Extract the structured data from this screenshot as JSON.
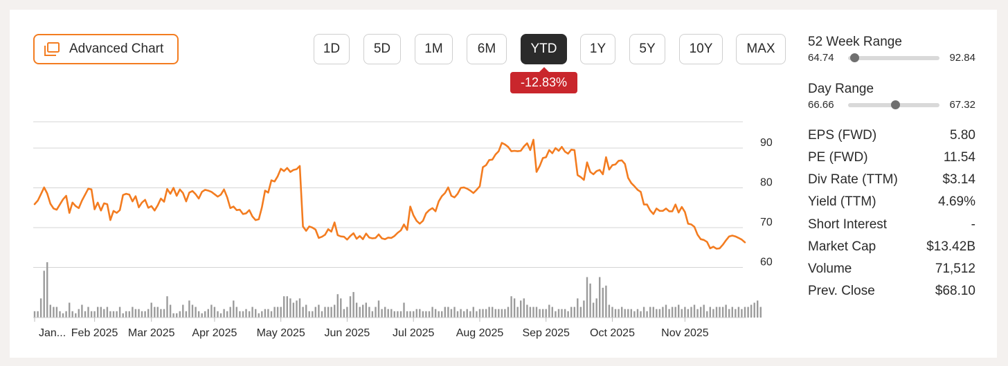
{
  "advanced_chart_label": "Advanced Chart",
  "ranges": [
    "1D",
    "5D",
    "1M",
    "6M",
    "YTD",
    "1Y",
    "5Y",
    "10Y",
    "MAX"
  ],
  "active_range": "YTD",
  "change_pct": "-12.83%",
  "colors": {
    "accent": "#f37c20",
    "negative": "#c9262c",
    "volume": "#9b9b9b",
    "grid": "#d4d4d4"
  },
  "week52": {
    "title": "52 Week Range",
    "low": "64.74",
    "high": "92.84",
    "current": 66.66
  },
  "day": {
    "title": "Day Range",
    "low": "66.66",
    "high": "67.32",
    "current": 67.0
  },
  "stats": [
    {
      "label": "EPS (FWD)",
      "value": "5.80"
    },
    {
      "label": "PE (FWD)",
      "value": "11.54"
    },
    {
      "label": "Div Rate (TTM)",
      "value": "$3.14"
    },
    {
      "label": "Yield (TTM)",
      "value": "4.69%"
    },
    {
      "label": "Short Interest",
      "value": "-"
    },
    {
      "label": "Market Cap",
      "value": "$13.42B"
    },
    {
      "label": "Volume",
      "value": "71,512"
    },
    {
      "label": "Prev. Close",
      "value": "$68.10"
    }
  ],
  "chart_data": {
    "type": "line",
    "title": "",
    "xlabel": "",
    "ylabel": "",
    "ylim": [
      58,
      98
    ],
    "yticks": [
      60,
      70,
      80,
      90
    ],
    "grid": true,
    "month_labels": [
      "Jan...",
      "Feb 2025",
      "Mar 2025",
      "Apr 2025",
      "May 2025",
      "Jun 2025",
      "Jul 2025",
      "Aug 2025",
      "Sep 2025",
      "Oct 2025",
      "Nov 2025"
    ],
    "month_start_index": [
      0,
      19,
      37,
      57,
      78,
      99,
      120,
      141,
      162,
      183,
      206
    ],
    "series": [
      {
        "name": "Price",
        "values": [
          75.9,
          76.8,
          78.4,
          80.1,
          78.6,
          76.0,
          74.8,
          74.5,
          75.8,
          77.1,
          78.0,
          73.7,
          76.3,
          75.4,
          74.9,
          76.8,
          78.3,
          79.8,
          79.6,
          74.6,
          76.3,
          74.3,
          76.1,
          75.9,
          71.9,
          74.2,
          73.7,
          74.4,
          78.2,
          78.5,
          78.3,
          76.6,
          77.9,
          75.1,
          76.3,
          77.0,
          75.0,
          75.4,
          74.3,
          75.6,
          77.3,
          76.5,
          79.7,
          78.5,
          80.0,
          78.0,
          79.6,
          78.7,
          76.6,
          78.8,
          79.2,
          78.4,
          77.3,
          79.0,
          79.5,
          79.3,
          79.0,
          78.4,
          77.8,
          78.3,
          79.6,
          77.6,
          74.9,
          75.3,
          74.4,
          74.5,
          73.4,
          73.6,
          74.4,
          72.8,
          71.9,
          72.1,
          75.1,
          79.3,
          78.8,
          81.9,
          81.6,
          82.9,
          84.8,
          84.2,
          85.0,
          84.0,
          84.5,
          84.7,
          85.5,
          70.3,
          69.2,
          70.3,
          70.0,
          69.5,
          67.4,
          67.7,
          68.2,
          69.6,
          69.0,
          71.3,
          68.1,
          67.8,
          67.7,
          67.0,
          67.9,
          68.6,
          67.2,
          67.9,
          67.1,
          68.5,
          67.5,
          67.3,
          67.4,
          68.3,
          67.3,
          67.1,
          67.5,
          67.4,
          67.9,
          68.7,
          69.3,
          70.8,
          69.4,
          75.3,
          73.1,
          71.7,
          71.0,
          71.7,
          73.6,
          74.4,
          74.9,
          74.1,
          76.6,
          77.9,
          78.7,
          80.1,
          78.0,
          77.6,
          78.5,
          80.0,
          80.1,
          79.8,
          79.3,
          78.7,
          79.5,
          80.4,
          85.2,
          85.7,
          87.0,
          87.1,
          88.4,
          89.2,
          91.3,
          90.9,
          90.3,
          89.2,
          89.3,
          89.2,
          89.3,
          90.4,
          91.2,
          89.5,
          92.1,
          84.0,
          85.5,
          87.5,
          87.7,
          89.5,
          88.7,
          90.0,
          89.3,
          90.3,
          89.1,
          88.6,
          89.6,
          89.5,
          83.2,
          82.7,
          82.0,
          86.4,
          84.0,
          83.4,
          84.2,
          84.5,
          83.4,
          87.7,
          84.6,
          85.7,
          85.9,
          86.8,
          86.9,
          86.0,
          82.5,
          81.2,
          80.4,
          79.5,
          79.0,
          75.8,
          75.8,
          74.3,
          73.4,
          74.8,
          74.2,
          74.2,
          74.8,
          74.1,
          74.1,
          75.8,
          73.8,
          75.2,
          73.9,
          71.0,
          70.8,
          70.2,
          68.2,
          67.1,
          66.9,
          66.4,
          64.8,
          65.2,
          64.7,
          64.8,
          65.7,
          66.8,
          67.8,
          68.0,
          67.8,
          67.4,
          67.0,
          66.3
        ]
      },
      {
        "name": "Volume",
        "values": [
          3,
          3,
          9,
          22,
          26,
          6,
          5,
          5,
          3,
          2,
          3,
          7,
          3,
          2,
          4,
          6,
          3,
          5,
          3,
          3,
          5,
          5,
          4,
          5,
          3,
          3,
          3,
          5,
          2,
          3,
          3,
          5,
          4,
          4,
          3,
          3,
          4,
          7,
          5,
          5,
          4,
          4,
          10,
          6,
          2,
          2,
          3,
          6,
          3,
          8,
          6,
          5,
          3,
          2,
          3,
          4,
          6,
          5,
          3,
          2,
          4,
          3,
          5,
          8,
          5,
          3,
          3,
          4,
          3,
          5,
          4,
          2,
          3,
          4,
          4,
          3,
          5,
          5,
          5,
          10,
          10,
          9,
          7,
          8,
          9,
          5,
          6,
          3,
          3,
          5,
          6,
          3,
          5,
          5,
          5,
          6,
          11,
          9,
          4,
          5,
          10,
          12,
          7,
          5,
          6,
          7,
          5,
          3,
          5,
          8,
          4,
          5,
          4,
          4,
          3,
          3,
          3,
          7,
          3,
          3,
          3,
          4,
          4,
          3,
          3,
          3,
          5,
          4,
          3,
          3,
          5,
          5,
          4,
          5,
          3,
          4,
          3,
          4,
          3,
          5,
          3,
          4,
          4,
          4,
          5,
          5,
          4,
          4,
          4,
          4,
          5,
          10,
          9,
          5,
          8,
          9,
          6,
          5,
          5,
          5,
          4,
          4,
          4,
          6,
          5,
          3,
          4,
          4,
          4,
          3,
          5,
          5,
          9,
          5,
          8,
          19,
          16,
          7,
          9,
          19,
          14,
          15,
          6,
          5,
          4,
          4,
          5,
          4,
          4,
          4,
          3,
          4,
          3,
          5,
          3,
          5,
          5,
          4,
          4,
          5,
          6,
          4,
          5,
          5,
          6,
          4,
          5,
          4,
          5,
          6,
          4,
          5,
          6,
          3,
          5,
          4,
          5,
          5,
          5,
          6,
          4,
          5,
          4,
          5,
          4,
          5,
          5,
          6,
          7,
          8,
          5
        ]
      }
    ]
  }
}
